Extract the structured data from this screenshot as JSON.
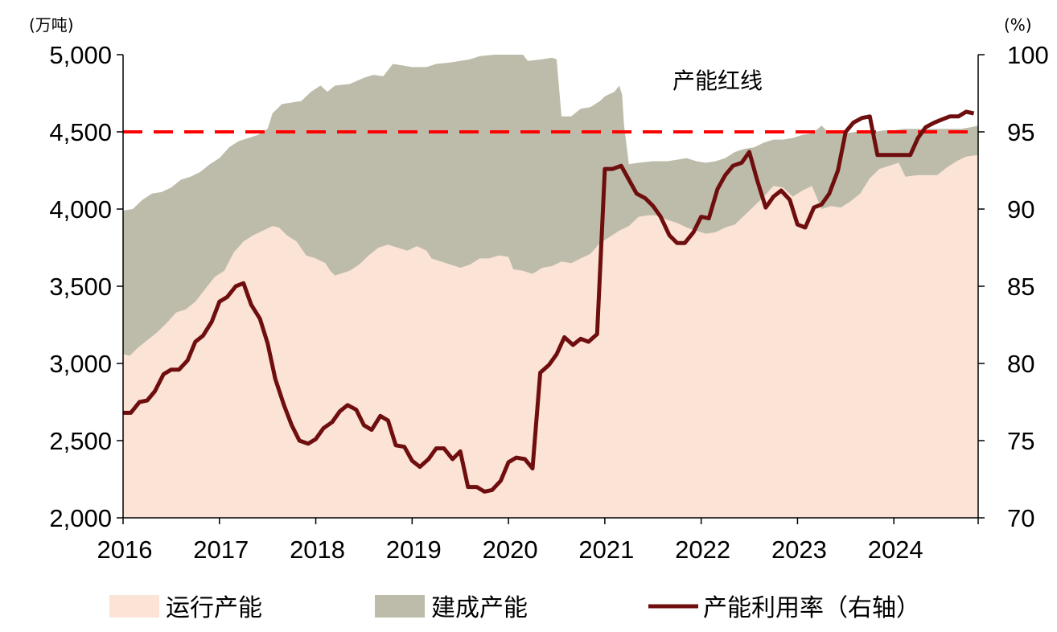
{
  "chart_data": {
    "type": "area",
    "left_unit": "(万吨)",
    "right_unit": "(%)",
    "annotation": "产能红线",
    "redline": 4500,
    "ylim_left": [
      2000,
      5000
    ],
    "ylim_right": [
      70,
      100
    ],
    "yticks_left": [
      "2,000",
      "2,500",
      "3,000",
      "3,500",
      "4,000",
      "4,500",
      "5,000"
    ],
    "yticks_right": [
      "70",
      "75",
      "80",
      "85",
      "90",
      "95",
      "100"
    ],
    "xticks": [
      "2016",
      "2017",
      "2018",
      "2019",
      "2020",
      "2021",
      "2022",
      "2023",
      "2024"
    ],
    "xlim": [
      2016.0,
      2024.875
    ],
    "colors": {
      "running": "#fbe3d6",
      "construction": "#bdbcaa",
      "utilization": "#6f0e0e",
      "redline": "#ff0000"
    },
    "legend": [
      {
        "label": "运行产能",
        "kind": "box",
        "color": "#fbe3d6"
      },
      {
        "label": "建成产能",
        "kind": "box",
        "color": "#bdbcaa"
      },
      {
        "label": "产能利用率（右轴）",
        "kind": "line",
        "color": "#6f0e0e"
      }
    ],
    "series": [
      {
        "name": "建成产能",
        "axis": "left",
        "points": [
          [
            2016.0,
            3990
          ],
          [
            2016.1,
            4000
          ],
          [
            2016.2,
            4060
          ],
          [
            2016.3,
            4100
          ],
          [
            2016.4,
            4110
          ],
          [
            2016.5,
            4140
          ],
          [
            2016.6,
            4190
          ],
          [
            2016.7,
            4210
          ],
          [
            2016.8,
            4240
          ],
          [
            2016.9,
            4290
          ],
          [
            2017.0,
            4330
          ],
          [
            2017.1,
            4400
          ],
          [
            2017.2,
            4440
          ],
          [
            2017.3,
            4460
          ],
          [
            2017.4,
            4480
          ],
          [
            2017.5,
            4520
          ],
          [
            2017.55,
            4620
          ],
          [
            2017.65,
            4680
          ],
          [
            2017.75,
            4690
          ],
          [
            2017.85,
            4700
          ],
          [
            2017.95,
            4760
          ],
          [
            2018.05,
            4800
          ],
          [
            2018.12,
            4760
          ],
          [
            2018.2,
            4800
          ],
          [
            2018.35,
            4810
          ],
          [
            2018.5,
            4850
          ],
          [
            2018.6,
            4870
          ],
          [
            2018.7,
            4860
          ],
          [
            2018.8,
            4940
          ],
          [
            2018.9,
            4930
          ],
          [
            2019.0,
            4920
          ],
          [
            2019.15,
            4920
          ],
          [
            2019.25,
            4940
          ],
          [
            2019.4,
            4950
          ],
          [
            2019.5,
            4960
          ],
          [
            2019.6,
            4970
          ],
          [
            2019.7,
            4990
          ],
          [
            2019.85,
            5000
          ],
          [
            2020.0,
            5000
          ],
          [
            2020.15,
            5000
          ],
          [
            2020.2,
            4960
          ],
          [
            2020.35,
            4970
          ],
          [
            2020.45,
            4980
          ],
          [
            2020.5,
            4970
          ],
          [
            2020.55,
            4600
          ],
          [
            2020.65,
            4600
          ],
          [
            2020.75,
            4650
          ],
          [
            2020.85,
            4660
          ],
          [
            2020.95,
            4700
          ],
          [
            2021.0,
            4730
          ],
          [
            2021.1,
            4760
          ],
          [
            2021.15,
            4800
          ],
          [
            2021.18,
            4740
          ],
          [
            2021.2,
            4540
          ],
          [
            2021.25,
            4290
          ],
          [
            2021.35,
            4300
          ],
          [
            2021.5,
            4310
          ],
          [
            2021.65,
            4310
          ],
          [
            2021.75,
            4320
          ],
          [
            2021.85,
            4330
          ],
          [
            2021.95,
            4310
          ],
          [
            2022.05,
            4300
          ],
          [
            2022.15,
            4310
          ],
          [
            2022.25,
            4330
          ],
          [
            2022.35,
            4370
          ],
          [
            2022.45,
            4390
          ],
          [
            2022.55,
            4400
          ],
          [
            2022.65,
            4430
          ],
          [
            2022.75,
            4450
          ],
          [
            2022.85,
            4450
          ],
          [
            2022.95,
            4460
          ],
          [
            2023.05,
            4480
          ],
          [
            2023.15,
            4490
          ],
          [
            2023.25,
            4540
          ],
          [
            2023.3,
            4510
          ],
          [
            2023.4,
            4490
          ],
          [
            2023.5,
            4490
          ],
          [
            2023.6,
            4500
          ],
          [
            2023.7,
            4500
          ],
          [
            2023.8,
            4500
          ],
          [
            2023.9,
            4510
          ],
          [
            2024.0,
            4510
          ],
          [
            2024.1,
            4520
          ],
          [
            2024.2,
            4520
          ],
          [
            2024.3,
            4520
          ],
          [
            2024.4,
            4520
          ],
          [
            2024.5,
            4520
          ],
          [
            2024.6,
            4520
          ],
          [
            2024.7,
            4520
          ],
          [
            2024.8,
            4530
          ],
          [
            2024.875,
            4540
          ]
        ]
      },
      {
        "name": "运行产能",
        "axis": "left",
        "points": [
          [
            2016.0,
            3060
          ],
          [
            2016.07,
            3050
          ],
          [
            2016.15,
            3100
          ],
          [
            2016.25,
            3150
          ],
          [
            2016.35,
            3200
          ],
          [
            2016.45,
            3260
          ],
          [
            2016.55,
            3330
          ],
          [
            2016.65,
            3350
          ],
          [
            2016.75,
            3400
          ],
          [
            2016.85,
            3480
          ],
          [
            2016.95,
            3560
          ],
          [
            2017.05,
            3600
          ],
          [
            2017.15,
            3720
          ],
          [
            2017.25,
            3790
          ],
          [
            2017.35,
            3830
          ],
          [
            2017.45,
            3860
          ],
          [
            2017.55,
            3890
          ],
          [
            2017.62,
            3880
          ],
          [
            2017.7,
            3830
          ],
          [
            2017.8,
            3790
          ],
          [
            2017.9,
            3700
          ],
          [
            2018.0,
            3680
          ],
          [
            2018.1,
            3650
          ],
          [
            2018.15,
            3600
          ],
          [
            2018.2,
            3570
          ],
          [
            2018.35,
            3600
          ],
          [
            2018.45,
            3640
          ],
          [
            2018.55,
            3700
          ],
          [
            2018.65,
            3750
          ],
          [
            2018.75,
            3770
          ],
          [
            2018.85,
            3750
          ],
          [
            2018.95,
            3730
          ],
          [
            2019.05,
            3760
          ],
          [
            2019.15,
            3730
          ],
          [
            2019.2,
            3680
          ],
          [
            2019.3,
            3660
          ],
          [
            2019.4,
            3640
          ],
          [
            2019.5,
            3620
          ],
          [
            2019.6,
            3640
          ],
          [
            2019.7,
            3680
          ],
          [
            2019.8,
            3680
          ],
          [
            2019.9,
            3700
          ],
          [
            2020.0,
            3690
          ],
          [
            2020.05,
            3610
          ],
          [
            2020.15,
            3600
          ],
          [
            2020.25,
            3580
          ],
          [
            2020.35,
            3620
          ],
          [
            2020.45,
            3630
          ],
          [
            2020.55,
            3660
          ],
          [
            2020.65,
            3650
          ],
          [
            2020.75,
            3680
          ],
          [
            2020.85,
            3710
          ],
          [
            2020.95,
            3780
          ],
          [
            2021.05,
            3820
          ],
          [
            2021.15,
            3860
          ],
          [
            2021.25,
            3890
          ],
          [
            2021.35,
            3950
          ],
          [
            2021.45,
            3960
          ],
          [
            2021.55,
            3960
          ],
          [
            2021.65,
            3930
          ],
          [
            2021.75,
            3910
          ],
          [
            2021.85,
            3880
          ],
          [
            2021.95,
            3860
          ],
          [
            2022.05,
            3840
          ],
          [
            2022.15,
            3850
          ],
          [
            2022.25,
            3880
          ],
          [
            2022.35,
            3900
          ],
          [
            2022.45,
            3960
          ],
          [
            2022.55,
            4020
          ],
          [
            2022.65,
            4080
          ],
          [
            2022.75,
            4150
          ],
          [
            2022.85,
            4140
          ],
          [
            2022.95,
            4080
          ],
          [
            2023.05,
            4120
          ],
          [
            2023.15,
            4150
          ],
          [
            2023.25,
            4000
          ],
          [
            2023.35,
            4020
          ],
          [
            2023.45,
            4010
          ],
          [
            2023.55,
            4050
          ],
          [
            2023.65,
            4100
          ],
          [
            2023.75,
            4200
          ],
          [
            2023.85,
            4260
          ],
          [
            2023.95,
            4280
          ],
          [
            2024.05,
            4300
          ],
          [
            2024.12,
            4210
          ],
          [
            2024.25,
            4220
          ],
          [
            2024.35,
            4220
          ],
          [
            2024.45,
            4220
          ],
          [
            2024.55,
            4270
          ],
          [
            2024.65,
            4310
          ],
          [
            2024.75,
            4340
          ],
          [
            2024.875,
            4350
          ]
        ]
      },
      {
        "name": "产能利用率（右轴）",
        "axis": "right",
        "points": [
          [
            2016.0,
            76.8
          ],
          [
            2016.08,
            76.8
          ],
          [
            2016.17,
            77.5
          ],
          [
            2016.25,
            77.6
          ],
          [
            2016.33,
            78.2
          ],
          [
            2016.42,
            79.3
          ],
          [
            2016.5,
            79.6
          ],
          [
            2016.58,
            79.6
          ],
          [
            2016.67,
            80.2
          ],
          [
            2016.75,
            81.4
          ],
          [
            2016.83,
            81.8
          ],
          [
            2016.92,
            82.7
          ],
          [
            2017.0,
            84.0
          ],
          [
            2017.08,
            84.3
          ],
          [
            2017.17,
            85.0
          ],
          [
            2017.25,
            85.2
          ],
          [
            2017.33,
            83.8
          ],
          [
            2017.42,
            82.9
          ],
          [
            2017.5,
            81.3
          ],
          [
            2017.58,
            79.0
          ],
          [
            2017.67,
            77.3
          ],
          [
            2017.75,
            76.0
          ],
          [
            2017.83,
            75.0
          ],
          [
            2017.92,
            74.8
          ],
          [
            2018.0,
            75.1
          ],
          [
            2018.08,
            75.8
          ],
          [
            2018.17,
            76.2
          ],
          [
            2018.25,
            76.9
          ],
          [
            2018.33,
            77.3
          ],
          [
            2018.42,
            77.0
          ],
          [
            2018.5,
            76.0
          ],
          [
            2018.58,
            75.7
          ],
          [
            2018.67,
            76.6
          ],
          [
            2018.75,
            76.3
          ],
          [
            2018.83,
            74.7
          ],
          [
            2018.92,
            74.6
          ],
          [
            2019.0,
            73.7
          ],
          [
            2019.08,
            73.3
          ],
          [
            2019.17,
            73.8
          ],
          [
            2019.25,
            74.5
          ],
          [
            2019.33,
            74.5
          ],
          [
            2019.42,
            73.8
          ],
          [
            2019.5,
            74.3
          ],
          [
            2019.58,
            72.0
          ],
          [
            2019.67,
            72.0
          ],
          [
            2019.75,
            71.7
          ],
          [
            2019.83,
            71.8
          ],
          [
            2019.92,
            72.4
          ],
          [
            2020.0,
            73.6
          ],
          [
            2020.08,
            73.9
          ],
          [
            2020.17,
            73.8
          ],
          [
            2020.25,
            73.2
          ],
          [
            2020.33,
            79.4
          ],
          [
            2020.42,
            79.9
          ],
          [
            2020.5,
            80.6
          ],
          [
            2020.58,
            81.7
          ],
          [
            2020.67,
            81.2
          ],
          [
            2020.75,
            81.6
          ],
          [
            2020.83,
            81.4
          ],
          [
            2020.92,
            81.9
          ],
          [
            2021.0,
            92.6
          ],
          [
            2021.08,
            92.6
          ],
          [
            2021.17,
            92.8
          ],
          [
            2021.25,
            91.9
          ],
          [
            2021.33,
            91.0
          ],
          [
            2021.42,
            90.7
          ],
          [
            2021.5,
            90.2
          ],
          [
            2021.58,
            89.5
          ],
          [
            2021.67,
            88.3
          ],
          [
            2021.75,
            87.8
          ],
          [
            2021.83,
            87.8
          ],
          [
            2021.92,
            88.5
          ],
          [
            2022.0,
            89.5
          ],
          [
            2022.08,
            89.4
          ],
          [
            2022.17,
            91.3
          ],
          [
            2022.25,
            92.2
          ],
          [
            2022.33,
            92.8
          ],
          [
            2022.42,
            93.0
          ],
          [
            2022.5,
            93.7
          ],
          [
            2022.58,
            91.9
          ],
          [
            2022.67,
            90.1
          ],
          [
            2022.75,
            90.8
          ],
          [
            2022.83,
            91.2
          ],
          [
            2022.92,
            90.6
          ],
          [
            2023.0,
            89.0
          ],
          [
            2023.08,
            88.8
          ],
          [
            2023.17,
            90.1
          ],
          [
            2023.25,
            90.3
          ],
          [
            2023.33,
            91.0
          ],
          [
            2023.42,
            92.5
          ],
          [
            2023.5,
            95.0
          ],
          [
            2023.58,
            95.6
          ],
          [
            2023.67,
            95.9
          ],
          [
            2023.75,
            96.0
          ],
          [
            2023.83,
            93.5
          ],
          [
            2023.92,
            93.5
          ],
          [
            2024.0,
            93.5
          ],
          [
            2024.08,
            93.5
          ],
          [
            2024.17,
            93.5
          ],
          [
            2024.25,
            94.6
          ],
          [
            2024.33,
            95.3
          ],
          [
            2024.42,
            95.6
          ],
          [
            2024.5,
            95.8
          ],
          [
            2024.58,
            96.0
          ],
          [
            2024.67,
            96.0
          ],
          [
            2024.75,
            96.3
          ],
          [
            2024.83,
            96.2
          ]
        ]
      }
    ]
  }
}
